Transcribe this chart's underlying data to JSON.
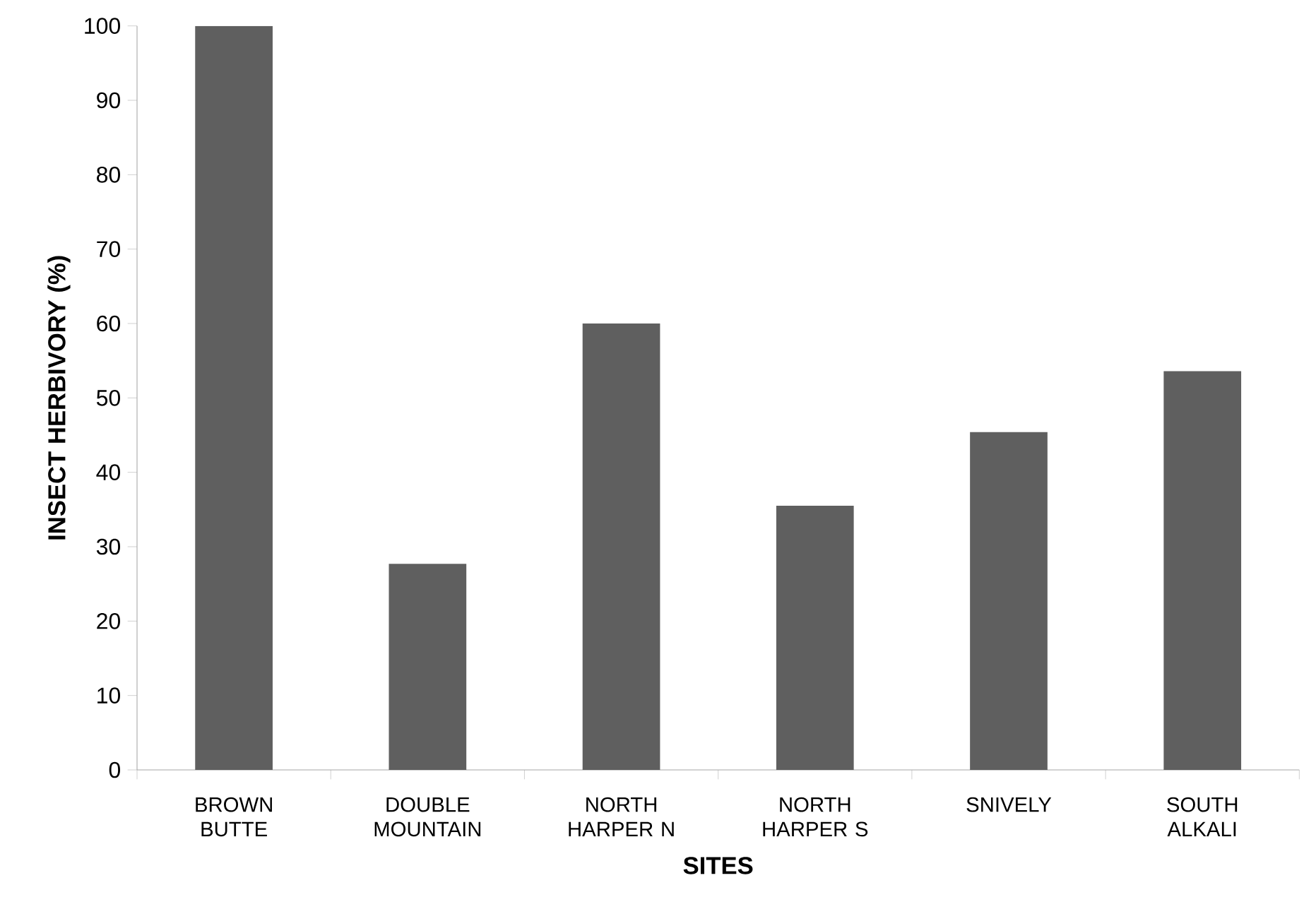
{
  "chart_data": {
    "type": "bar",
    "xlabel": "SITES",
    "ylabel": "INSECT HERBIVORY (%)",
    "categories": [
      "BROWN BUTTE",
      "DOUBLE MOUNTAIN",
      "NORTH HARPER N",
      "NORTH HARPER S",
      "SNIVELY",
      "SOUTH ALKALI"
    ],
    "values": [
      100,
      27.7,
      60,
      35.5,
      45.4,
      53.6
    ],
    "color": "#5f5f5f",
    "ylim": [
      0,
      100
    ],
    "yticks": [
      0,
      10,
      20,
      30,
      40,
      50,
      60,
      70,
      80,
      90,
      100
    ],
    "grid": false
  }
}
